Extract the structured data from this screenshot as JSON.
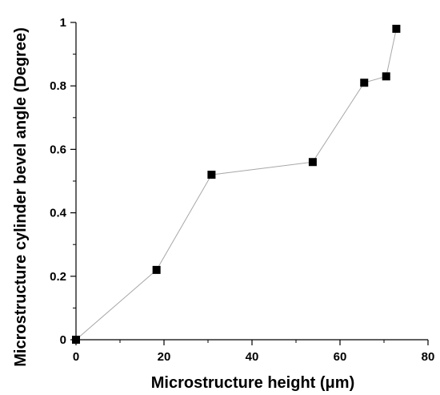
{
  "chart_data": {
    "type": "line",
    "title": "",
    "xlabel": "Microstructure height (μm)",
    "ylabel": "Microstructure cylinder bevel angle (Degree)",
    "xlim": [
      0,
      80
    ],
    "ylim": [
      0,
      1
    ],
    "x_ticks": [
      0,
      20,
      40,
      60,
      80
    ],
    "y_ticks": [
      0,
      0.2,
      0.4,
      0.6,
      0.8,
      1
    ],
    "x_tick_labels": [
      "0",
      "20",
      "40",
      "60",
      "80"
    ],
    "y_tick_labels": [
      "0",
      "0.2",
      "0.4",
      "0.6",
      "0.8",
      "1"
    ],
    "grid": false,
    "series": [
      {
        "x": [
          0,
          18.3,
          30.8,
          53.8,
          65.5,
          70.5,
          72.8
        ],
        "y": [
          0,
          0.22,
          0.52,
          0.56,
          0.81,
          0.83,
          0.98
        ],
        "marker": "square",
        "line_color": "#a8a8a8",
        "marker_color": "#000000"
      }
    ]
  }
}
